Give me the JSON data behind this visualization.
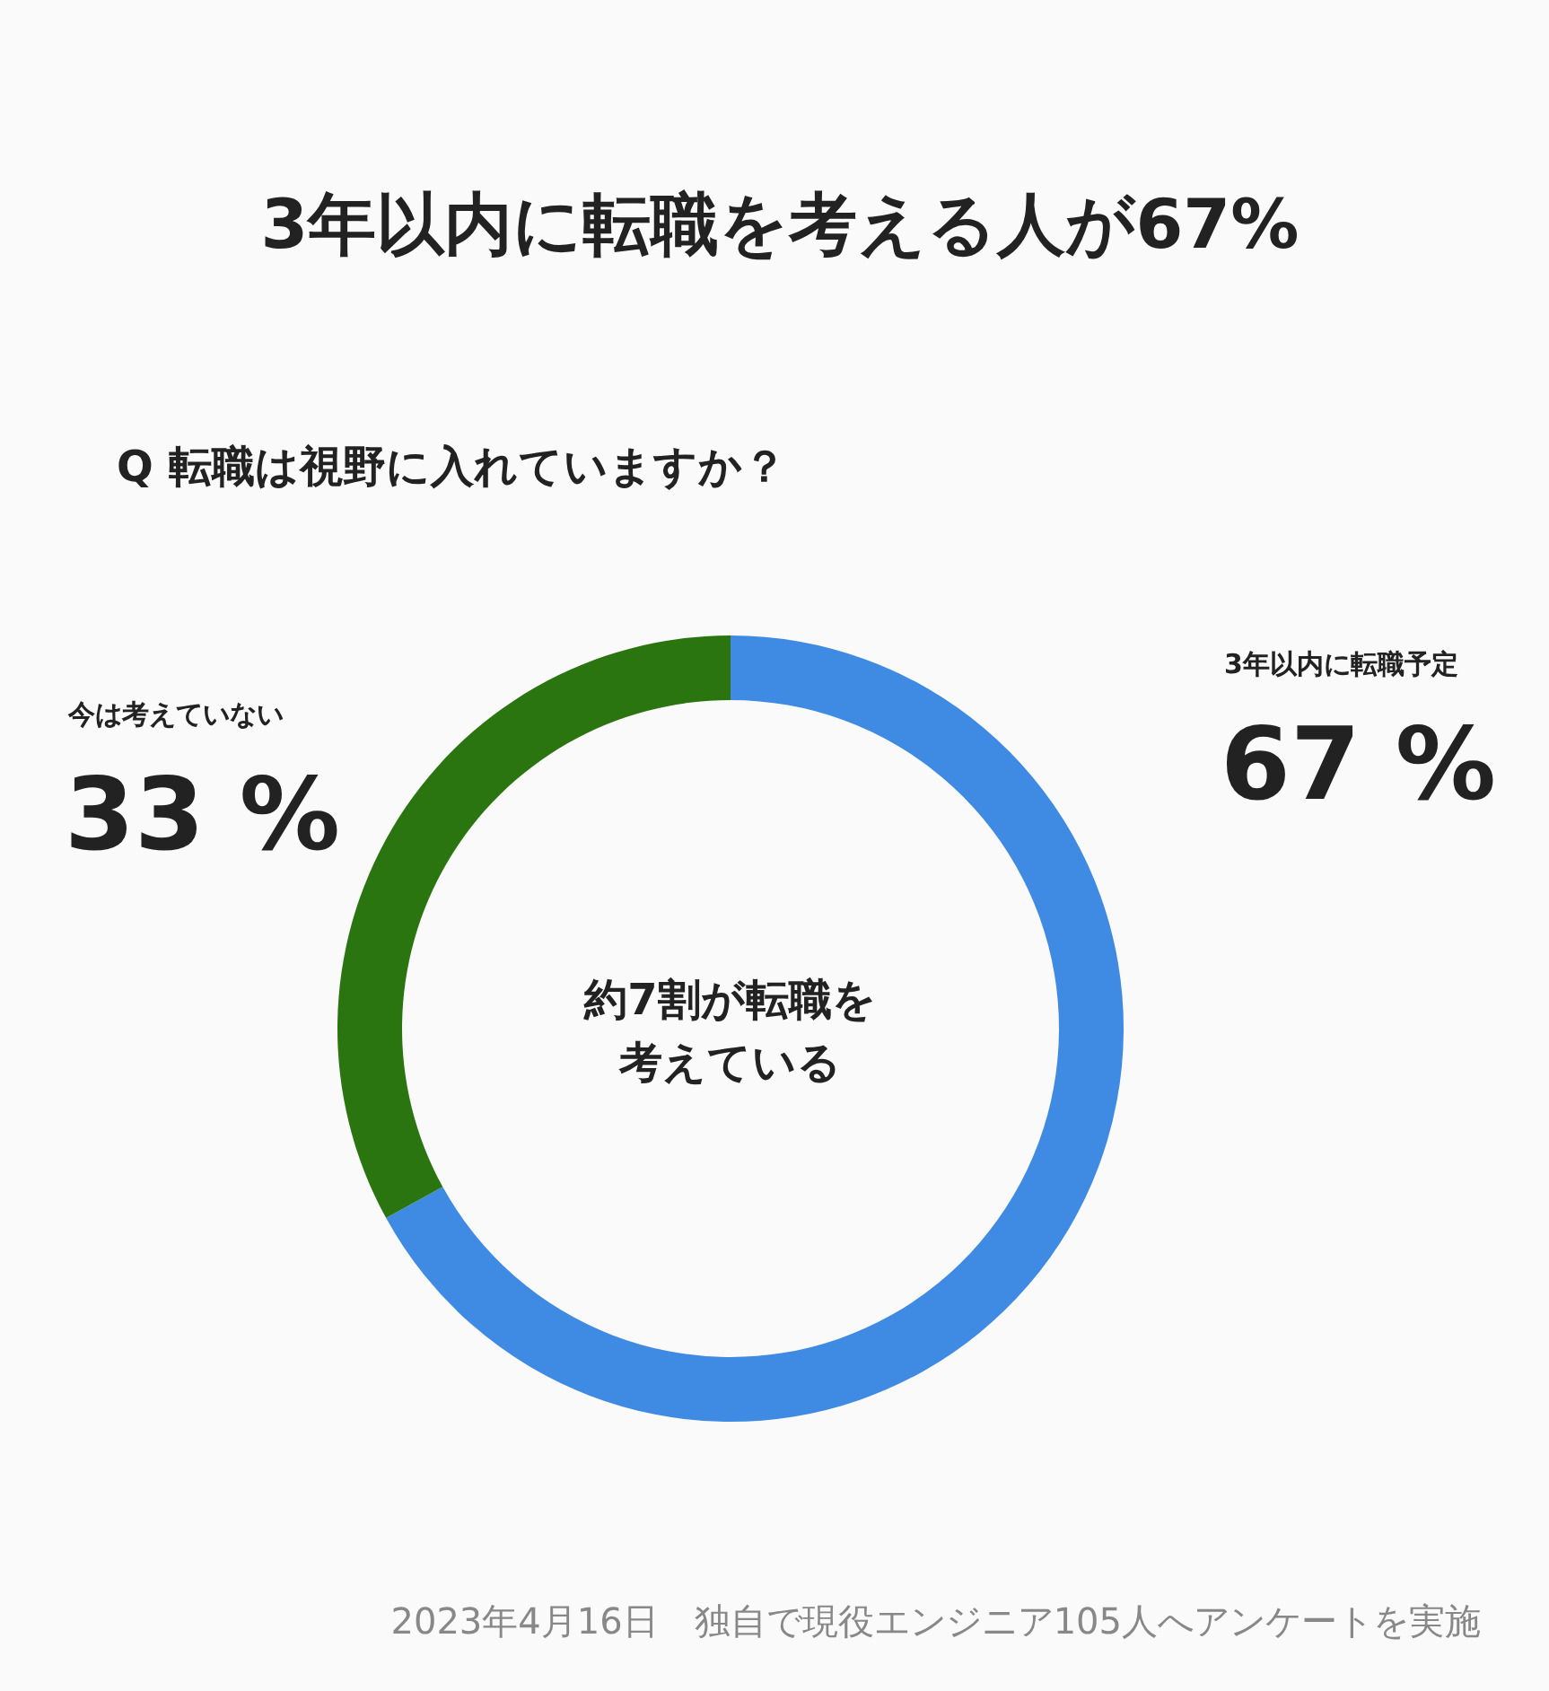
{
  "chart_data": {
    "type": "donut",
    "title": "3年以内に転職を考える人が67%",
    "subtitle": "Q  転職は視野に入れていますか？",
    "categories": [
      "3年以内に転職予定",
      "今は考えていない"
    ],
    "values": [
      67,
      33
    ],
    "colors": [
      "#3f8ae3",
      "#2b7511"
    ],
    "value_labels": [
      "67 %",
      "33 %"
    ],
    "annotations": [
      "約7割が転職を",
      "考えている",
      "2023年4月16日　独自で現役エンジニア105人へアンケートを実施"
    ],
    "legend": false
  }
}
